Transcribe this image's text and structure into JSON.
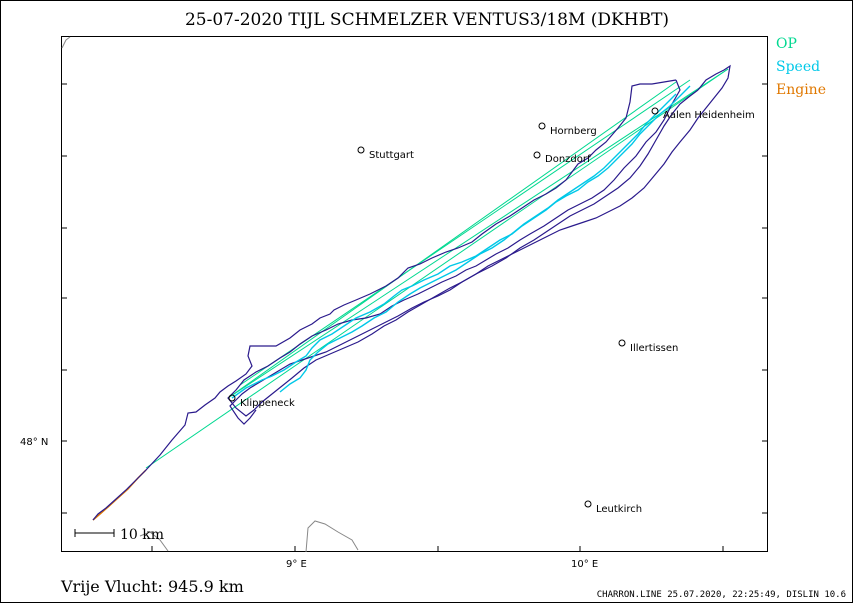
{
  "title": "25-07-2020   TIJL SCHMELZER   VENTUS3/18M (DKHBT)",
  "legend": [
    {
      "label": "OP",
      "color": "#00d890"
    },
    {
      "label": "Speed",
      "color": "#00c8e8"
    },
    {
      "label": "Engine",
      "color": "#e07800"
    }
  ],
  "axes": {
    "lat_label": "48° N",
    "lon_labels": [
      "9° E",
      "10° E"
    ]
  },
  "scale_bar": "10 km",
  "distance": "Vrije Vlucht:  945.9 km",
  "footer": "CHARRON.LINE 25.07.2020, 22:25:49, DISLIN 10.6",
  "places": [
    {
      "name": "Aalen Heidenheim"
    },
    {
      "name": "Hornberg"
    },
    {
      "name": "Stuttgart"
    },
    {
      "name": "Donzdorf"
    },
    {
      "name": "Illertissen"
    },
    {
      "name": "Klippeneck"
    },
    {
      "name": "Leutkirch"
    }
  ],
  "colors": {
    "track": "#2a1a8c",
    "speed": "#00c8e8",
    "op": "#00d890",
    "engine": "#e07800",
    "frame": "#000000"
  }
}
